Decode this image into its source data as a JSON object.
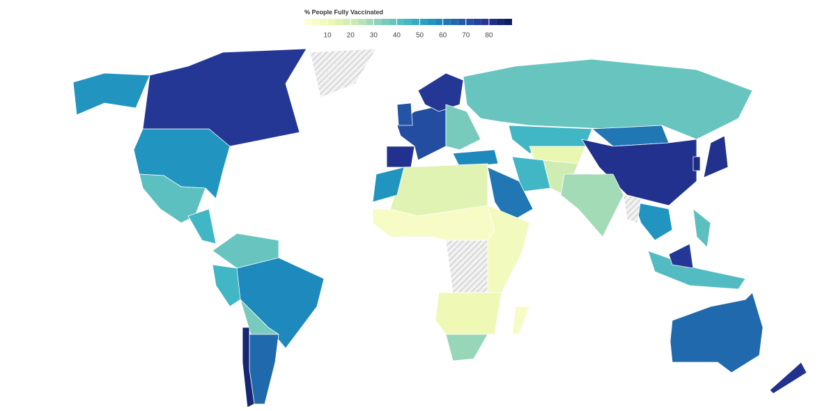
{
  "chart_data": {
    "type": "choropleth",
    "title": "% People Fully Vaccinated",
    "colorbar": {
      "lim": [
        0,
        90
      ],
      "ticks": [
        10,
        20,
        30,
        40,
        50,
        60,
        70,
        80
      ],
      "colors": [
        "#ffffd9",
        "#edf8b1",
        "#c7e9b4",
        "#7fcdbb",
        "#41b6c4",
        "#1d91c0",
        "#225ea8",
        "#253494",
        "#081d58"
      ]
    },
    "no_data_color": "#d9d9d9",
    "values": [
      55,
      78,
      40,
      45,
      null,
      38,
      58,
      45,
      35,
      65,
      85,
      72,
      80,
      78,
      70,
      35,
      58,
      38,
      45,
      62,
      80,
      12,
      45,
      62,
      20,
      28,
      55,
      null,
      42,
      78,
      40,
      80,
      82,
      15,
      5,
      null,
      8,
      10,
      30,
      5,
      55,
      65,
      80
    ]
  }
}
